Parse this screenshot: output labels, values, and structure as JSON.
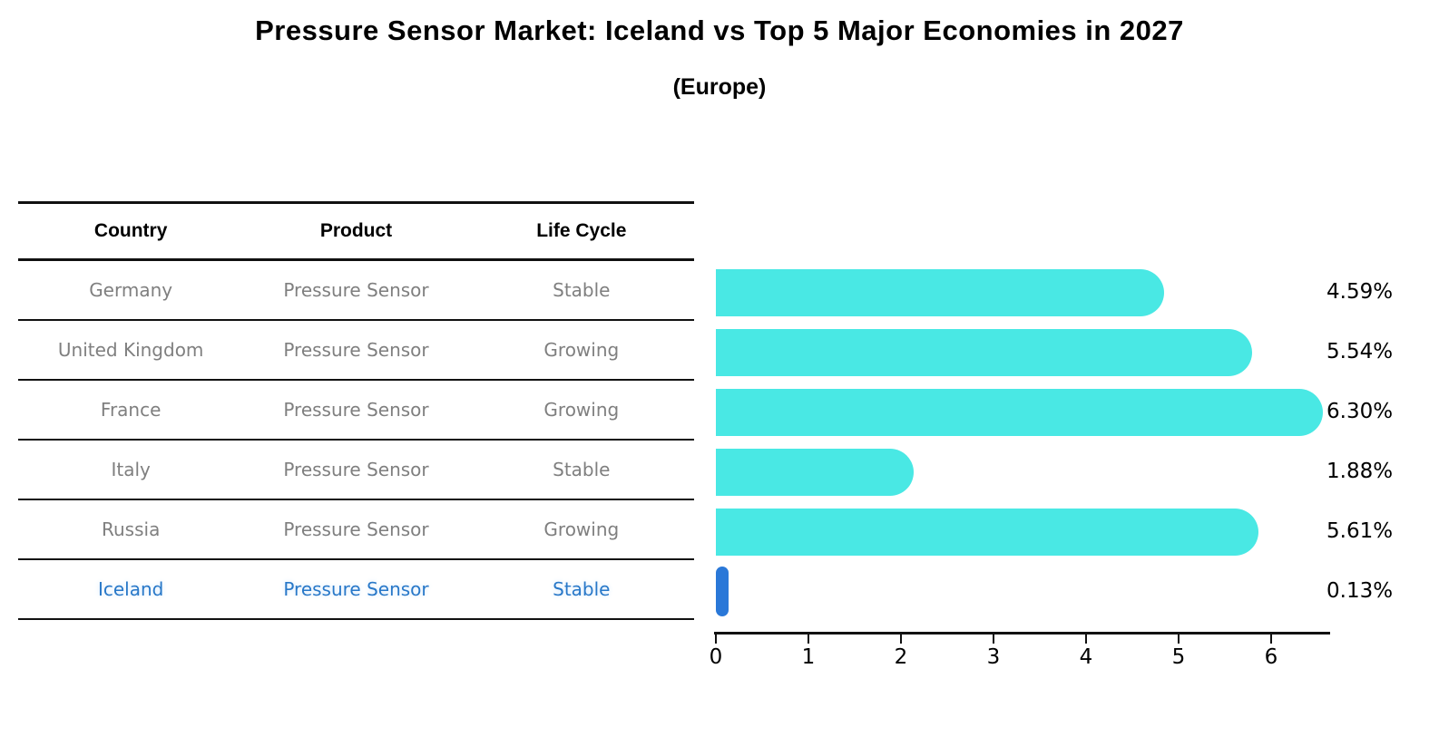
{
  "chart": {
    "title": "Pressure Sensor Market: Iceland vs Top 5 Major Economies in 2027",
    "subtitle": "(Europe)"
  },
  "table": {
    "columns": [
      "Country",
      "Product",
      "Life Cycle"
    ],
    "rows": [
      {
        "country": "Germany",
        "product": "Pressure Sensor",
        "life_cycle": "Stable",
        "highlight": false
      },
      {
        "country": "United Kingdom",
        "product": "Pressure Sensor",
        "life_cycle": "Growing",
        "highlight": false
      },
      {
        "country": "France",
        "product": "Pressure Sensor",
        "life_cycle": "Growing",
        "highlight": false
      },
      {
        "country": "Italy",
        "product": "Pressure Sensor",
        "life_cycle": "Stable",
        "highlight": false
      },
      {
        "country": "Russia",
        "product": "Pressure Sensor",
        "life_cycle": "Growing",
        "highlight": false
      },
      {
        "country": "Iceland",
        "product": "Pressure Sensor",
        "life_cycle": "Stable",
        "highlight": true
      }
    ]
  },
  "chart_data": {
    "type": "bar",
    "orientation": "horizontal",
    "title": "Pressure Sensor Market: Iceland vs Top 5 Major Economies in 2027",
    "subtitle": "(Europe)",
    "categories": [
      "Germany",
      "United Kingdom",
      "France",
      "Italy",
      "Russia",
      "Iceland"
    ],
    "values": [
      4.59,
      5.54,
      6.3,
      1.88,
      5.61,
      0.13
    ],
    "value_labels": [
      "4.59%",
      "5.54%",
      "6.30%",
      "1.88%",
      "5.61%",
      "0.13%"
    ],
    "xlabel": "",
    "ylabel": "",
    "xlim": [
      0,
      6.65
    ],
    "xticks": [
      0,
      1,
      2,
      3,
      4,
      5,
      6
    ],
    "grid": false,
    "legend": false,
    "bar_color": "#49e8e4",
    "highlight_color": "#2a78d8",
    "highlight_index": 5,
    "highlight_text_color": "#2878c8"
  }
}
